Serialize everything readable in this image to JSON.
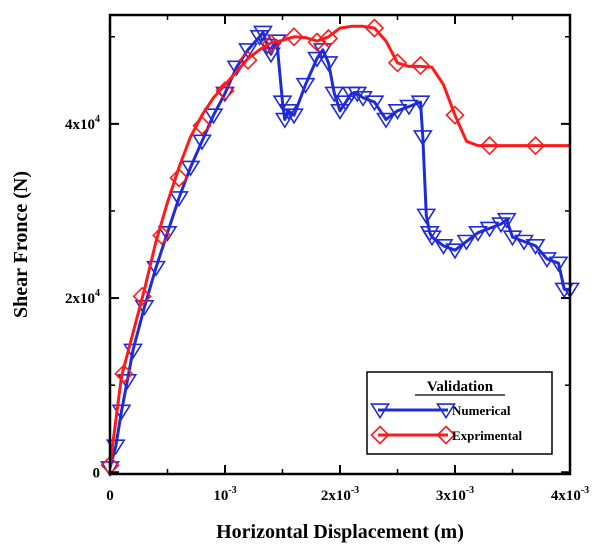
{
  "chart_data": {
    "type": "line",
    "xlabel": "Horizontal Displacement (m)",
    "ylabel": "Shear Fronce (N)",
    "xlim": [
      0,
      0.004
    ],
    "ylim": [
      -200,
      52500
    ],
    "x_ticks": [
      {
        "value": 0,
        "label": "0",
        "sup": ""
      },
      {
        "value": 0.001,
        "label": "10",
        "sup": "-3"
      },
      {
        "value": 0.002,
        "label": "2x10",
        "sup": "-3"
      },
      {
        "value": 0.003,
        "label": "3x10",
        "sup": "-3"
      },
      {
        "value": 0.004,
        "label": "4x10",
        "sup": "-3"
      }
    ],
    "y_ticks": [
      {
        "value": 0,
        "label": "0",
        "sup": ""
      },
      {
        "value": 20000,
        "label": "2x10",
        "sup": "4"
      },
      {
        "value": 40000,
        "label": "4x10",
        "sup": "4"
      }
    ],
    "grid": false,
    "legend": {
      "title": "Validation",
      "position": "bottom-right"
    },
    "series": [
      {
        "name": "Numerical",
        "color": "#1f2bd6",
        "marker": "triangle-down",
        "x": [
          0,
          5e-05,
          0.0001,
          0.00015,
          0.0002,
          0.0003,
          0.0004,
          0.0005,
          0.0006,
          0.0007,
          0.0008,
          0.0009,
          0.001,
          0.0011,
          0.0012,
          0.0013,
          0.00133,
          0.00137,
          0.0014,
          0.00145,
          0.0015,
          0.00152,
          0.00155,
          0.0016,
          0.0017,
          0.0018,
          0.00185,
          0.0019,
          0.00195,
          0.002,
          0.00205,
          0.0021,
          0.00215,
          0.0022,
          0.0023,
          0.0024,
          0.0025,
          0.0026,
          0.0027,
          0.00272,
          0.00275,
          0.00278,
          0.0028,
          0.0029,
          0.003,
          0.0031,
          0.0032,
          0.0033,
          0.0034,
          0.00345,
          0.0035,
          0.0036,
          0.0037,
          0.0038,
          0.0039,
          0.00395,
          0.004
        ],
        "y": [
          500,
          3000,
          7000,
          10500,
          14000,
          19000,
          23500,
          27500,
          31500,
          35000,
          38000,
          41000,
          43500,
          46500,
          48500,
          50000,
          50500,
          49000,
          48000,
          49500,
          42500,
          40500,
          41500,
          41000,
          44500,
          47500,
          48500,
          47000,
          43500,
          41500,
          42500,
          43500,
          43500,
          43000,
          42500,
          40500,
          41500,
          42000,
          42500,
          38500,
          29500,
          27500,
          27000,
          26000,
          25500,
          26500,
          27500,
          28000,
          28500,
          29000,
          27000,
          26500,
          26000,
          24500,
          24000,
          21000,
          21000
        ]
      },
      {
        "name": "Exprimental",
        "color": "#ff1a1a",
        "marker": "diamond",
        "x": [
          0,
          0.0001,
          0.0002,
          0.0003,
          0.0004,
          0.0005,
          0.0006,
          0.0007,
          0.0008,
          0.0009,
          0.001,
          0.0011,
          0.0012,
          0.0013,
          0.0014,
          0.0015,
          0.0016,
          0.0017,
          0.0018,
          0.0019,
          0.002,
          0.0021,
          0.0022,
          0.0023,
          0.0024,
          0.0025,
          0.0026,
          0.0027,
          0.0028,
          0.0029,
          0.003,
          0.0031,
          0.0032,
          0.0033,
          0.0034,
          0.0035,
          0.0036,
          0.0037,
          0.0038,
          0.0039,
          0.004
        ],
        "y": [
          800,
          11000,
          16000,
          21000,
          26500,
          31000,
          35000,
          38500,
          41000,
          43000,
          44500,
          46000,
          47500,
          48500,
          49300,
          49600,
          50000,
          49900,
          49500,
          50000,
          51000,
          51200,
          51200,
          51000,
          49500,
          47000,
          46600,
          46600,
          46500,
          44500,
          41000,
          38000,
          37500,
          37500,
          37500,
          37500,
          37500,
          37500,
          37500,
          37500,
          37500
        ],
        "markers_x": [
          0,
          0.00012,
          0.00028,
          0.00045,
          0.0006,
          0.0008,
          0.001,
          0.0012,
          0.0014,
          0.0016,
          0.0018,
          0.0019,
          0.0023,
          0.0025,
          0.0027,
          0.003,
          0.0033,
          0.0037
        ],
        "markers_y": [
          800,
          11300,
          20200,
          27200,
          33800,
          39800,
          43800,
          47300,
          49200,
          50000,
          49400,
          49800,
          51000,
          47000,
          46700,
          41000,
          37500,
          37500
        ]
      }
    ]
  }
}
